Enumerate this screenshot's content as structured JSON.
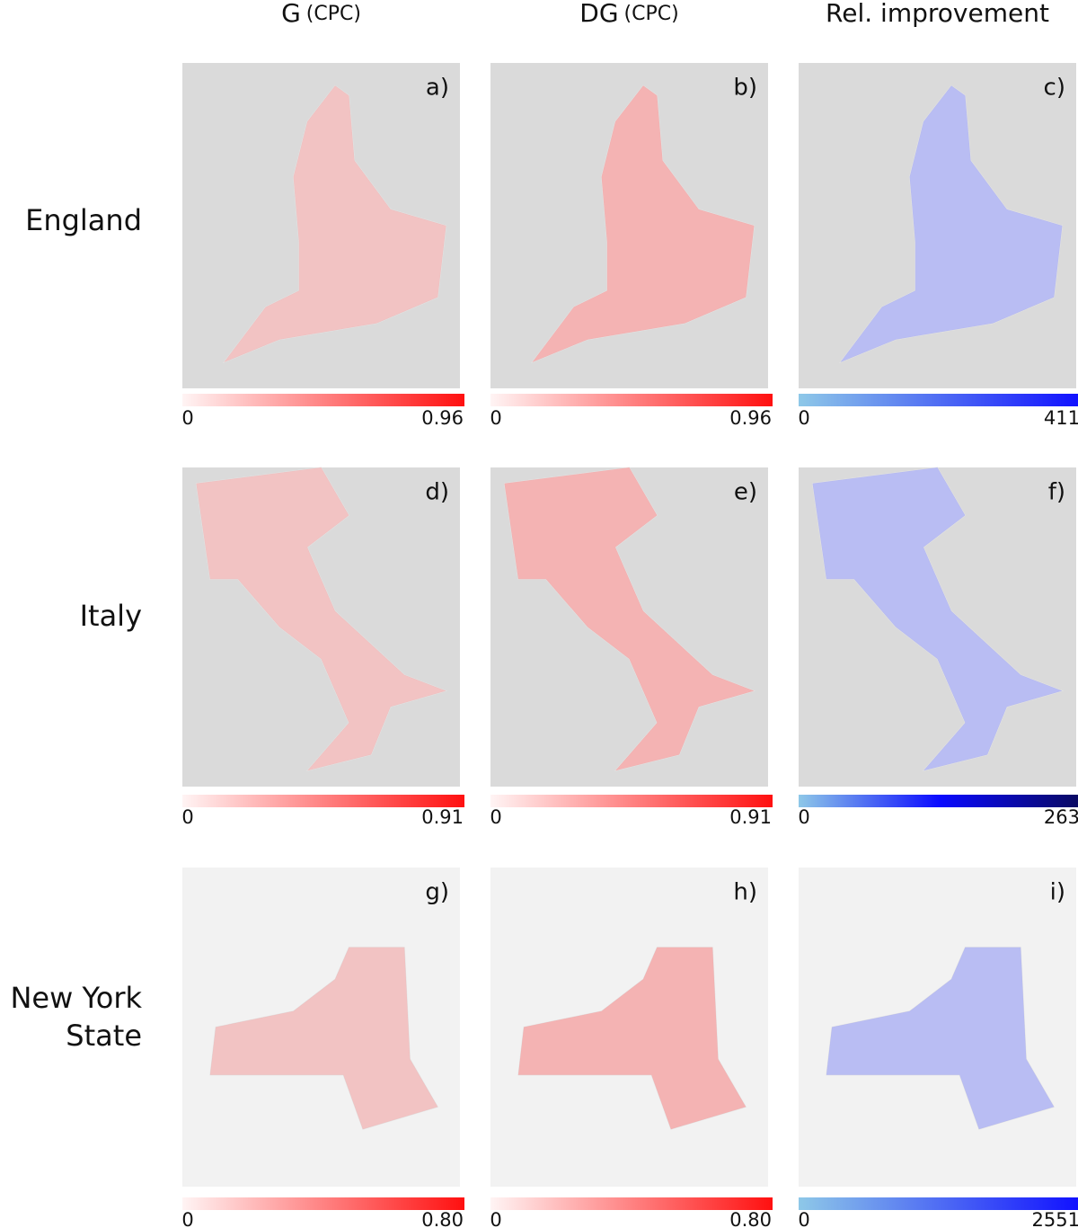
{
  "columns": [
    {
      "symbol": "G",
      "suffix": "(CPC)"
    },
    {
      "symbol": "DG",
      "suffix": "(CPC)"
    },
    {
      "symbol": "Rel. improvement"
    }
  ],
  "rows": [
    {
      "label": [
        "England"
      ],
      "panels": [
        {
          "letter": "a)",
          "colorbar": {
            "min": 0,
            "max": 0.96,
            "colors": [
              "#fff4f4",
              "#ff1010"
            ]
          }
        },
        {
          "letter": "b)",
          "colorbar": {
            "min": 0,
            "max": 0.96,
            "colors": [
              "#fff4f4",
              "#ff1010"
            ]
          }
        },
        {
          "letter": "c)",
          "colorbar": {
            "min": 0,
            "max": 411,
            "colors": [
              "#8ec8e8",
              "#1010ff"
            ]
          }
        }
      ]
    },
    {
      "label": [
        "Italy"
      ],
      "panels": [
        {
          "letter": "d)",
          "colorbar": {
            "min": 0,
            "max": 0.91,
            "colors": [
              "#fff4f4",
              "#ff1010"
            ]
          }
        },
        {
          "letter": "e)",
          "colorbar": {
            "min": 0,
            "max": 0.91,
            "colors": [
              "#fff4f4",
              "#ff1010"
            ]
          }
        },
        {
          "letter": "f)",
          "colorbar": {
            "min": 0,
            "max": 263,
            "colors": [
              "#8ec8e8",
              "#0a0aff",
              "#0a0a60"
            ]
          }
        }
      ]
    },
    {
      "label": [
        "New York",
        "State"
      ],
      "panels": [
        {
          "letter": "g)",
          "colorbar": {
            "min": 0,
            "max": {
              "value": 0.8,
              "label": "0.80"
            },
            "colors": [
              "#fff4f4",
              "#ff1010"
            ]
          }
        },
        {
          "letter": "h)",
          "colorbar": {
            "min": 0,
            "max": {
              "value": 0.8,
              "label": "0.80"
            },
            "colors": [
              "#fff4f4",
              "#ff1010"
            ]
          }
        },
        {
          "letter": "i)",
          "colorbar": {
            "min": 0,
            "max": 2551,
            "colors": [
              "#8ec8e8",
              "#1010ff"
            ]
          }
        }
      ]
    }
  ]
}
